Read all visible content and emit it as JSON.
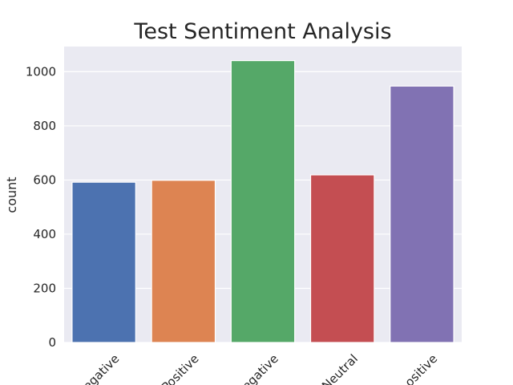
{
  "chart_data": {
    "type": "bar",
    "title": "Test Sentiment Analysis",
    "xlabel": "",
    "ylabel": "count",
    "categories": [
      "Extremely Negative",
      "Extremely Positive",
      "Negative",
      "Neutral",
      "Positive"
    ],
    "tick_labels": [
      "egative",
      "Positive",
      "egative",
      "Neutral",
      "ositive"
    ],
    "values": [
      592,
      599,
      1041,
      619,
      947
    ],
    "colors": [
      "#4c72b0",
      "#dd8452",
      "#55a868",
      "#c44e52",
      "#8172b3"
    ],
    "yticks": [
      0,
      200,
      400,
      600,
      800,
      1000
    ],
    "ylim": [
      0,
      1093
    ],
    "grid": true,
    "background": "#eaeaf2"
  }
}
